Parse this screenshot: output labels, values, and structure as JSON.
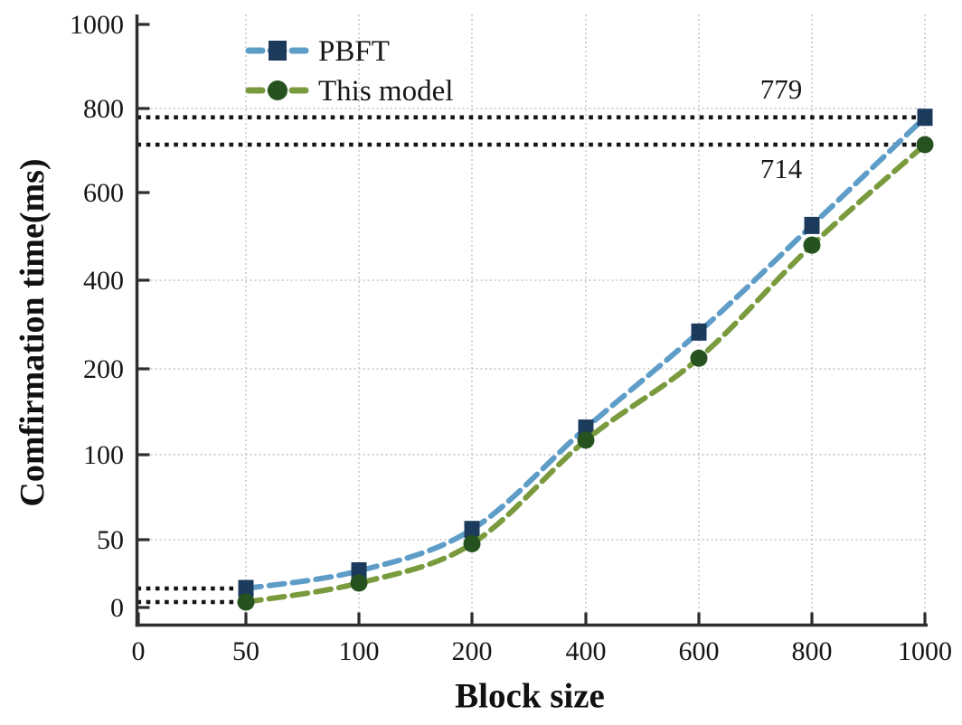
{
  "chart_data": {
    "type": "line",
    "title": "",
    "xlabel": "Block size",
    "ylabel": "Comfirmation time(ms)",
    "x_tick_labels": [
      "0",
      "50",
      "100",
      "200",
      "400",
      "600",
      "800",
      "1000"
    ],
    "y_tick_labels": [
      "0",
      "50",
      "100",
      "200",
      "400",
      "600",
      "800",
      "1000"
    ],
    "x_tick_values": [
      0,
      50,
      100,
      200,
      400,
      600,
      800,
      1000
    ],
    "y_tick_values": [
      0,
      50,
      100,
      200,
      400,
      600,
      800,
      1000
    ],
    "x": [
      50,
      100,
      200,
      400,
      600,
      800,
      1000
    ],
    "series": [
      {
        "name": "PBFT",
        "values": [
          14,
          27,
          56,
          131,
          283,
          525,
          779
        ],
        "line_color": "#5e9dc8",
        "marker": "square",
        "marker_color": "#1c3a5c"
      },
      {
        "name": "This model",
        "values": [
          4,
          18,
          47,
          117,
          224,
          480,
          714
        ],
        "line_color": "#7a9a3e",
        "marker": "circle",
        "marker_color": "#25521e"
      }
    ],
    "legend_position": "top-left",
    "grid": {
      "x_gridlines_at": [
        50,
        100,
        200,
        400,
        600,
        800,
        1000
      ],
      "y_gridlines_at": [
        50,
        100,
        200,
        400,
        800
      ],
      "style": "dotted-gray"
    },
    "annotations": [
      {
        "text": "779",
        "value": 779,
        "to_x": 1000,
        "text_side": "above"
      },
      {
        "text": "714",
        "value": 714,
        "to_x": 1000,
        "text_side": "below"
      },
      {
        "text": "",
        "value": 14,
        "to_x": 50,
        "text_side": "none"
      },
      {
        "text": "",
        "value": 4,
        "to_x": 50,
        "text_side": "none"
      }
    ],
    "xlim": [
      0,
      1000
    ],
    "ylim": [
      0,
      1000
    ]
  }
}
